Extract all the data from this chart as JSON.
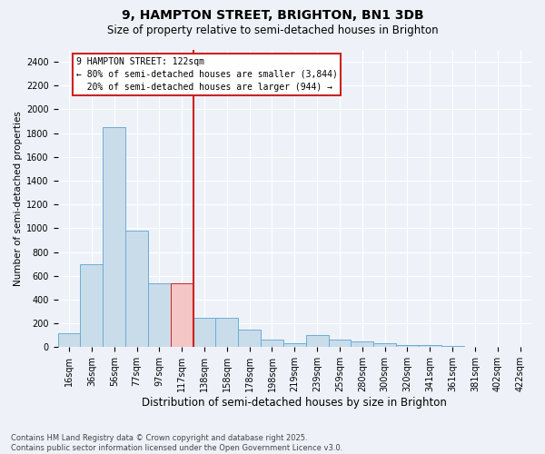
{
  "title": "9, HAMPTON STREET, BRIGHTON, BN1 3DB",
  "subtitle": "Size of property relative to semi-detached houses in Brighton",
  "xlabel": "Distribution of semi-detached houses by size in Brighton",
  "ylabel": "Number of semi-detached properties",
  "footnote": "Contains HM Land Registry data © Crown copyright and database right 2025.\nContains public sector information licensed under the Open Government Licence v3.0.",
  "bar_labels": [
    "16sqm",
    "36sqm",
    "56sqm",
    "77sqm",
    "97sqm",
    "117sqm",
    "138sqm",
    "158sqm",
    "178sqm",
    "198sqm",
    "219sqm",
    "239sqm",
    "259sqm",
    "280sqm",
    "300sqm",
    "320sqm",
    "341sqm",
    "361sqm",
    "381sqm",
    "402sqm",
    "422sqm"
  ],
  "bar_values": [
    120,
    700,
    1850,
    980,
    540,
    540,
    250,
    250,
    150,
    65,
    30,
    100,
    60,
    50,
    30,
    20,
    15,
    10,
    5,
    5,
    5
  ],
  "bar_color": "#c9dcea",
  "bar_edge_color": "#6baed6",
  "highlight_bar_index": 5,
  "highlight_bar_color": "#f4c6c6",
  "highlight_bar_edge_color": "#cc2222",
  "vline_position": 5.5,
  "vline_color": "#cc2222",
  "annotation_text": "9 HAMPTON STREET: 122sqm\n← 80% of semi-detached houses are smaller (3,844)\n  20% of semi-detached houses are larger (944) →",
  "ylim_max": 2500,
  "yticks": [
    0,
    200,
    400,
    600,
    800,
    1000,
    1200,
    1400,
    1600,
    1800,
    2000,
    2200,
    2400
  ],
  "background_color": "#eef2f8",
  "grid_color": "#ffffff",
  "title_fontsize": 10,
  "subtitle_fontsize": 8.5,
  "ylabel_fontsize": 7.5,
  "xlabel_fontsize": 8.5,
  "tick_fontsize": 7,
  "footnote_fontsize": 6
}
